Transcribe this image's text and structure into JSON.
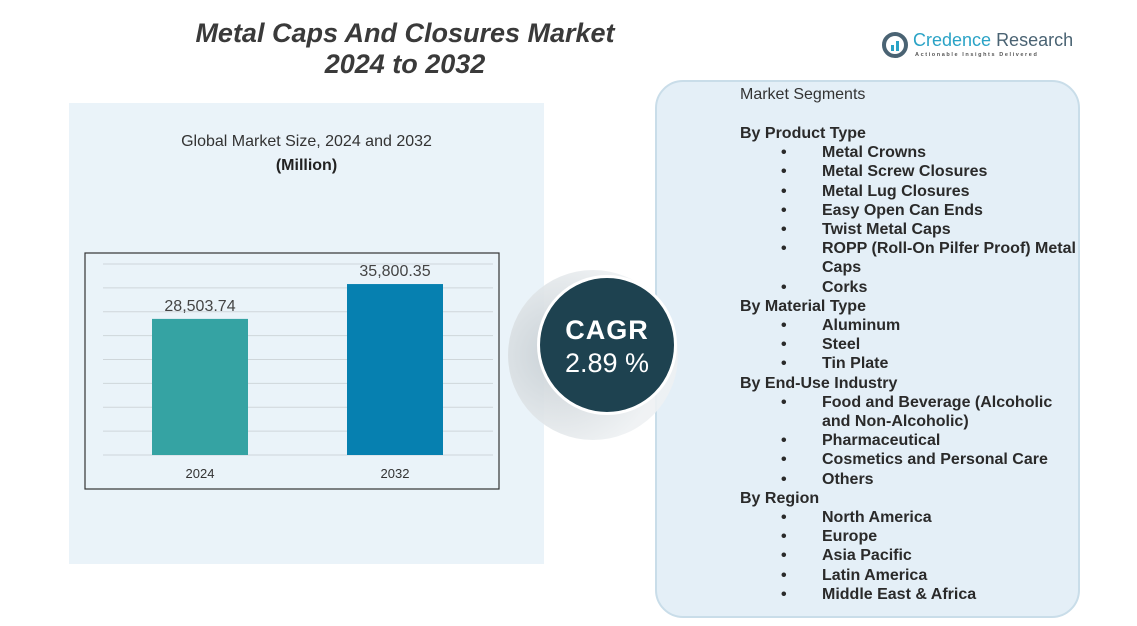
{
  "title_line1": "Metal Caps And Closures Market",
  "title_line2": "2024 to 2032",
  "logo": {
    "name_part1": "Credence",
    "name_part2": "Research",
    "tagline": "Actionable Insights Delivered"
  },
  "colors": {
    "bar_2024": "#35a3a3",
    "bar_2032": "#0680b0",
    "cagr_circle": "#1e4250",
    "panel": "#e4eff7"
  },
  "chart_data": {
    "type": "bar",
    "title": "Global Market Size, 2024 and 2032",
    "unit": "(Million)",
    "categories": [
      "2024",
      "2032"
    ],
    "values": [
      28503.74,
      35800.35
    ],
    "data_labels": [
      "28,503.74",
      "35,800.35"
    ],
    "ylim": [
      0,
      40000
    ],
    "grid": true
  },
  "cagr": {
    "label": "CAGR",
    "value": "2.89 %"
  },
  "segments": {
    "title": "Market Segments",
    "bullet": "•",
    "groups": [
      {
        "name": "By Product Type",
        "items": [
          "Metal Crowns",
          "Metal Screw Closures",
          "Metal Lug Closures",
          "Easy Open Can Ends",
          "Twist Metal Caps",
          "ROPP (Roll-On Pilfer Proof) Metal Caps",
          "Corks"
        ]
      },
      {
        "name": "By Material Type",
        "items": [
          "Aluminum",
          "Steel",
          "Tin Plate"
        ]
      },
      {
        "name": "By End-Use Industry",
        "items": [
          "Food and Beverage (Alcoholic and Non-Alcoholic)",
          "Pharmaceutical",
          "Cosmetics and Personal Care",
          "Others"
        ]
      },
      {
        "name": "By Region",
        "items": [
          "North America",
          "Europe",
          "Asia Pacific",
          "Latin America",
          "Middle East & Africa"
        ]
      }
    ]
  }
}
